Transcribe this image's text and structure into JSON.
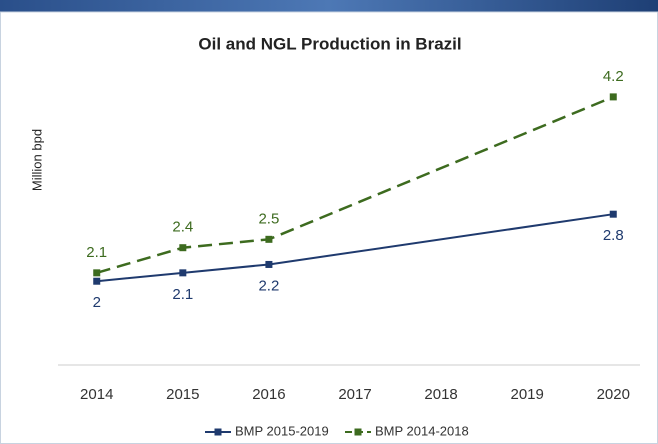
{
  "chart_data": {
    "type": "line",
    "title": "Oil and NGL Production in Brazil",
    "y_label": "Million  bpd",
    "x": [
      2014,
      2015,
      2016,
      2020
    ],
    "xlim": [
      2013.55,
      2020.45
    ],
    "xticks": [
      2014,
      2015,
      2016,
      2017,
      2018,
      2019,
      2020
    ],
    "ylim": [
      1,
      4.7
    ],
    "series": [
      {
        "name": "BMP 2015-2019",
        "color": "#1f3a6e",
        "dash": false,
        "values": [
          2,
          2.1,
          2.2,
          2.8
        ]
      },
      {
        "name": "BMP 2014-2018",
        "color": "#3d6b1f",
        "dash": true,
        "values": [
          2.1,
          2.4,
          2.5,
          4.2
        ]
      }
    ]
  }
}
